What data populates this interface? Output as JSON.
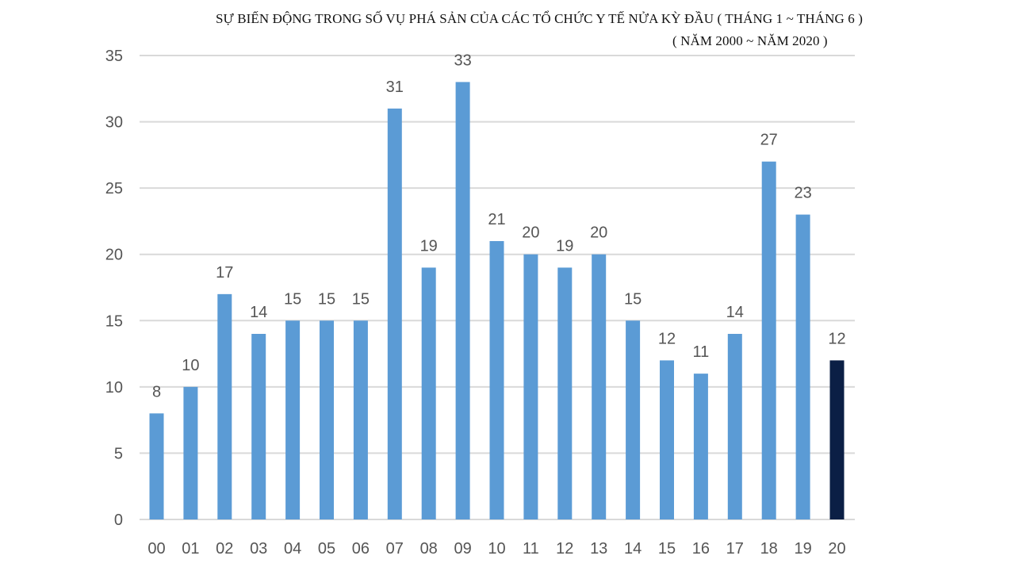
{
  "chart_data": {
    "type": "bar",
    "title": "SỰ BIẾN ĐỘNG TRONG SỐ VỤ PHÁ SẢN CỦA CÁC TỔ CHỨC Y TẾ NỬA KỲ ĐẦU ( THÁNG 1 ~ THÁNG 6 )",
    "subtitle": "( NĂM 2000 ~ NĂM 2020 )",
    "categories": [
      "00",
      "01",
      "02",
      "03",
      "04",
      "05",
      "06",
      "07",
      "08",
      "09",
      "10",
      "11",
      "12",
      "13",
      "14",
      "15",
      "16",
      "17",
      "18",
      "19",
      "20"
    ],
    "values": [
      8,
      10,
      17,
      14,
      15,
      15,
      15,
      31,
      19,
      33,
      21,
      20,
      19,
      20,
      15,
      12,
      11,
      14,
      27,
      23,
      12
    ],
    "yticks": [
      "0",
      "5",
      "10",
      "15",
      "20",
      "25",
      "30",
      "35"
    ],
    "ylim": [
      0,
      35
    ],
    "xlabel": "",
    "ylabel": "",
    "grid": true,
    "legend": "none",
    "colors": {
      "bar": "#5b9bd5",
      "highlight": "#0b1f45",
      "grid": "#d9d9d9",
      "text": "#555555"
    },
    "highlight_category": "20"
  }
}
